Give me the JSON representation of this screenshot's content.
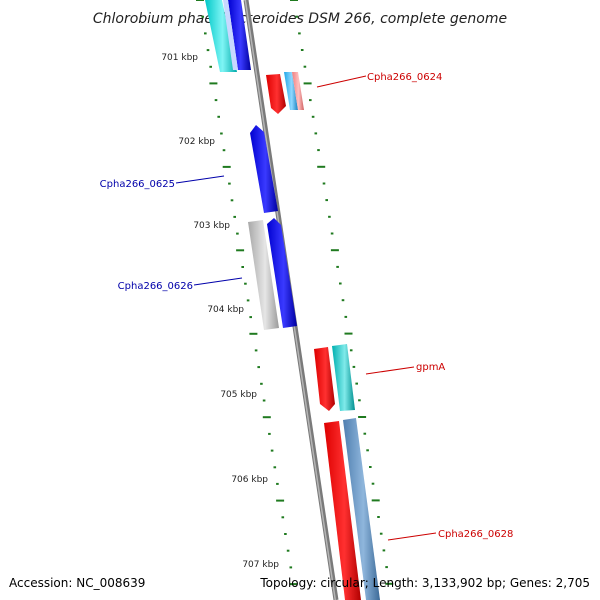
{
  "header": {
    "title": "Chlorobium phaeobacteroides DSM 266, complete genome"
  },
  "footer": {
    "accession": "Accession: NC_008639",
    "summary": "Topology: circular; Length: 3,133,902 bp; Genes: 2,705"
  },
  "colors": {
    "backbone": "#8a8a8a",
    "tick": "#1f7a1f",
    "red_label": "#cc0000",
    "blue_label": "#0000aa"
  },
  "scale": {
    "labels": [
      "701 kbp",
      "702 kbp",
      "703 kbp",
      "704 kbp",
      "705 kbp",
      "706 kbp",
      "707 kbp"
    ]
  },
  "gene_labels": [
    {
      "id": "cpha266-0624",
      "text": "Cpha266_0624",
      "color": "#cc0000"
    },
    {
      "id": "cpha266-0625",
      "text": "Cpha266_0625",
      "color": "#0000aa"
    },
    {
      "id": "cpha266-0626",
      "text": "Cpha266_0626",
      "color": "#0000aa"
    },
    {
      "id": "gpma",
      "text": "gpmA",
      "color": "#cc0000"
    },
    {
      "id": "cpha266-0628",
      "text": "Cpha266_0628",
      "color": "#cc0000"
    }
  ],
  "gene_colors": [
    "cyan",
    "blue",
    "red",
    "skyblue",
    "salmon",
    "gray",
    "teal",
    "steelblue"
  ]
}
